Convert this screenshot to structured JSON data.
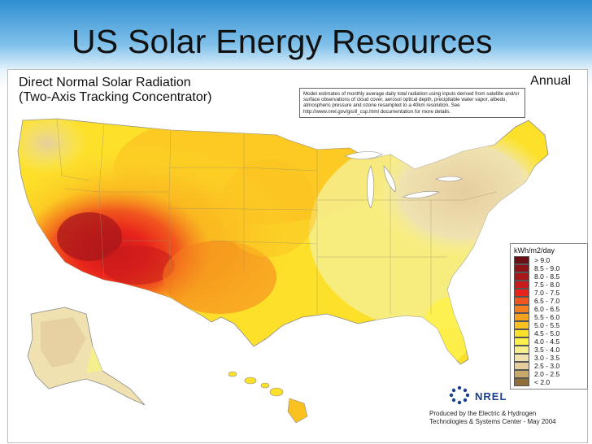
{
  "slide": {
    "title": "US Solar Energy Resources"
  },
  "map": {
    "title_line1": "Direct Normal Solar Radiation",
    "title_line2": "(Two-Axis Tracking Concentrator)",
    "period": "Annual",
    "note": "Model estimates of monthly average daily total radiation using inputs derived from satellite and/or surface observations of cloud cover, aerosol optical depth, precipitable water vapor, albedo, atmospheric pressure and ozone resampled to a 40km resolution. See http://www.nrel.gov/gis/il_csp.html documentation for more details.",
    "credit_line1": "Produced by the Electric & Hydrogen",
    "credit_line2": "Technologies & Systems Center - May 2004",
    "logo_text": "NREL"
  },
  "legend": {
    "unit": "kWh/m2/day",
    "classes": [
      {
        "label": "> 9.0",
        "color": "#6b0f14"
      },
      {
        "label": "8.5 - 9.0",
        "color": "#8c1418"
      },
      {
        "label": "8.0 - 8.5",
        "color": "#a8171a"
      },
      {
        "label": "7.5 - 8.0",
        "color": "#c91b1b"
      },
      {
        "label": "7.0 - 7.5",
        "color": "#e8231c"
      },
      {
        "label": "6.5 - 7.0",
        "color": "#f1571d"
      },
      {
        "label": "6.0 - 6.5",
        "color": "#f47f1e"
      },
      {
        "label": "5.5 - 6.0",
        "color": "#f7a21f"
      },
      {
        "label": "5.0 - 5.5",
        "color": "#fbc121"
      },
      {
        "label": "4.5 - 5.0",
        "color": "#fde02a"
      },
      {
        "label": "4.0 - 4.5",
        "color": "#fdf04d"
      },
      {
        "label": "3.5 - 4.0",
        "color": "#f6ef8e"
      },
      {
        "label": "3.0 - 3.5",
        "color": "#f0e2b0"
      },
      {
        "label": "2.5 - 3.0",
        "color": "#e5cda0"
      },
      {
        "label": "2.0 - 2.5",
        "color": "#c8a96a"
      },
      {
        "label": "< 2.0",
        "color": "#8e6f3c"
      }
    ]
  }
}
